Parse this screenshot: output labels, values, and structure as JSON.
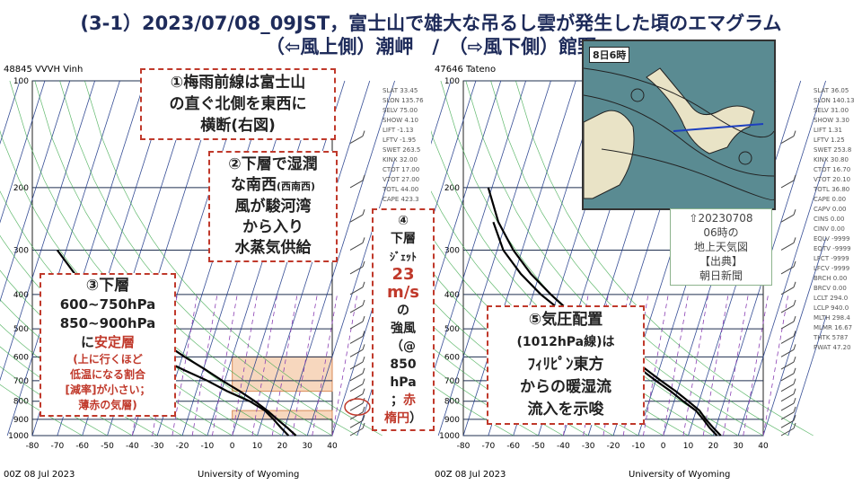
{
  "title_line1": "(3-1）2023/07/08_09JST，富士山で雄大な吊るし雲が発生した頃のエマグラム",
  "title_line2": "（⇦風上側）潮岬　/　（⇨風下側）館野",
  "colors": {
    "title": "#1e2b5a",
    "accent_red": "#c0392b",
    "stable_shade": "#f4c9a8",
    "grid_blue": "#1f3a8a",
    "mixing_purple": "#8a3fb3"
  },
  "left_chart": {
    "station": "48845 VVVH Vinh",
    "date": "00Z 08 Jul 2023",
    "source": "University of Wyoming",
    "indices": [
      "SLAT 33.45",
      "SLON 135.76",
      "SELV 75.00",
      "SHOW 4.10",
      "LIFT -1.13",
      "LFTV -1.95",
      "SWET 263.5",
      "KINX 32.00",
      "CTOT 17.00",
      "VTOT 27.00",
      "TOTL 44.00",
      "CAPE 423.3"
    ]
  },
  "right_chart": {
    "station": "47646 Tateno",
    "date": "00Z 08 Jul 2023",
    "source": "University of Wyoming",
    "indices": [
      "SLAT 36.05",
      "SLON 140.13",
      "SELV 31.00",
      "SHOW 3.30",
      "LIFT 1.31",
      "LFTV 1.25",
      "SWET 253.8",
      "KINX 30.80",
      "CTOT 16.70",
      "VTOT 20.10",
      "TOTL 36.80",
      "CAPE 0.00",
      "CAPV 0.00",
      "CINS 0.00",
      "CINV 0.00",
      "EQLV -9999",
      "EQTV -9999",
      "LFCT -9999",
      "LFCV -9999",
      "BRCH 0.00",
      "BRCV 0.00",
      "LCLT 294.0",
      "LCLP 940.0",
      "MLTH 298.4",
      "MLMR 16.67",
      "THTK 5787",
      "PWAT 47.20"
    ]
  },
  "notes": {
    "n1": [
      "①梅雨前線は富士山",
      "の直ぐ北側を東西に",
      "横断(右図)"
    ],
    "n2_line1": "②下層で湿潤",
    "n2_line2a": "な南西",
    "n2_line2b": "(西南西)",
    "n2_rest": [
      "風が駿河湾",
      "から入り",
      "水蒸気供給"
    ],
    "n3_head": "③下層",
    "n3_ranges": [
      "600~750hPa",
      "850~900hPa"
    ],
    "n3_mid_pre": "に",
    "n3_mid_red": "安定層",
    "n3_sub": [
      "(上に行くほど",
      "低温になる割合",
      "[減率]が小さい；",
      "薄赤の気層)"
    ],
    "n4": [
      "④",
      "下層",
      "ｼﾞｪｯﾄ"
    ],
    "n4_value": "23",
    "n4_unit": "m/s",
    "n4_rest": [
      "の",
      "強風",
      "（@",
      "850",
      "hPa",
      "；"
    ],
    "n4_red1": "赤",
    "n4_red2": "楕円",
    "n4_close": "）",
    "n5": [
      "⑤気圧配置",
      "(1012hPa線)は",
      "ﾌｨﾘﾋﾟﾝ東方",
      "からの暖湿流",
      "流入を示唆"
    ]
  },
  "map": {
    "label": "8日6時",
    "caption": [
      "⇧20230708",
      "06時の",
      "地上天気図",
      "【出典】",
      "朝日新聞"
    ]
  },
  "chart_data": [
    {
      "type": "line",
      "title": "",
      "subtitle": "48845 VVVH Vinh",
      "xlabel": "",
      "ylabel": "",
      "x_ticks": [
        -80,
        -70,
        -60,
        -50,
        -40,
        -30,
        -20,
        -10,
        0,
        10,
        20,
        30,
        40
      ],
      "y_ticks": [
        100,
        200,
        300,
        400,
        500,
        600,
        700,
        800,
        900,
        1000
      ],
      "y_scale": "log-pressure",
      "xlim": [
        -80,
        40
      ],
      "ylim": [
        1000,
        100
      ],
      "series": [
        {
          "x": [
            25.5,
            22,
            18,
            14,
            9,
            3,
            -4,
            -11,
            -19,
            -27,
            -36,
            -46,
            -55,
            -63,
            -70
          ],
          "y": [
            1000,
            950,
            900,
            850,
            800,
            750,
            700,
            650,
            600,
            550,
            500,
            450,
            400,
            350,
            300
          ]
        },
        {
          "x": [
            22.5,
            19.5,
            16.5,
            13,
            7,
            -2,
            -10,
            -20,
            -30,
            -40,
            -48,
            -56,
            -62,
            -65
          ],
          "y": [
            1000,
            950,
            900,
            850,
            800,
            750,
            700,
            650,
            600,
            550,
            500,
            450,
            400,
            350
          ]
        }
      ],
      "shaded_layers_hPa": [
        [
          600,
          750
        ],
        [
          850,
          900
        ]
      ],
      "wind_highlight_hPa": 850
    },
    {
      "type": "line",
      "title": "",
      "subtitle": "47646 Tateno",
      "xlabel": "",
      "ylabel": "",
      "x_ticks": [
        -80,
        -70,
        -60,
        -50,
        -40,
        -30,
        -20,
        -10,
        0,
        10,
        20,
        30,
        40
      ],
      "y_ticks": [
        100,
        200,
        300,
        400,
        500,
        600,
        700,
        800,
        900,
        1000
      ],
      "y_scale": "log-pressure",
      "xlim": [
        -80,
        40
      ],
      "ylim": [
        1000,
        100
      ],
      "series": [
        {
          "x": [
            23,
            20,
            17,
            14.5,
            10,
            5,
            -1,
            -7,
            -14,
            -21,
            -29,
            -37,
            -45,
            -53,
            -60,
            -66,
            -70
          ],
          "y": [
            1000,
            950,
            900,
            850,
            800,
            750,
            700,
            650,
            600,
            550,
            500,
            450,
            400,
            350,
            300,
            250,
            200
          ]
        },
        {
          "x": [
            21.5,
            18.5,
            16,
            13,
            8,
            3,
            -3,
            -9,
            -16,
            -23,
            -31,
            -40,
            -49,
            -57,
            -64,
            -68
          ],
          "y": [
            1000,
            950,
            900,
            850,
            800,
            750,
            700,
            650,
            600,
            550,
            500,
            450,
            400,
            350,
            300,
            250
          ]
        }
      ]
    }
  ]
}
